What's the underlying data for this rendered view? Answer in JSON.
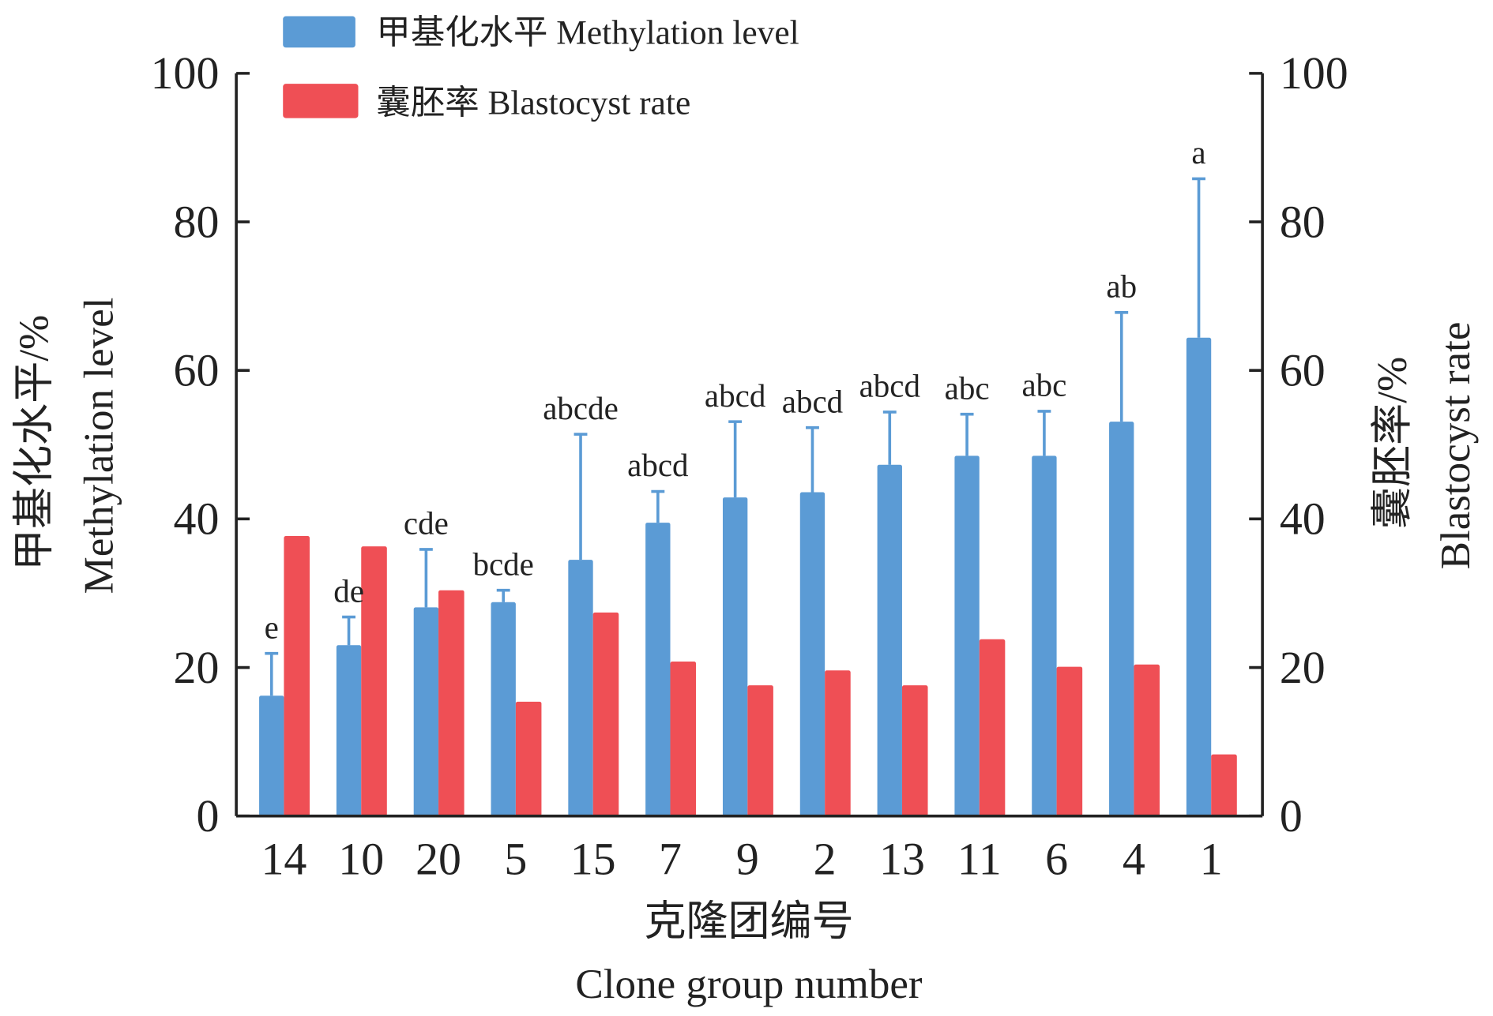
{
  "chart_data": {
    "type": "bar",
    "categories": [
      "14",
      "10",
      "20",
      "5",
      "15",
      "7",
      "9",
      "2",
      "13",
      "11",
      "6",
      "4",
      "1"
    ],
    "series": [
      {
        "name": "甲基化水平 Methylation level",
        "axis": "left",
        "color": "#5b9bd5",
        "values": [
          16.2,
          23.0,
          28.1,
          28.8,
          34.5,
          39.5,
          42.9,
          43.6,
          47.3,
          48.5,
          48.5,
          53.1,
          64.4
        ],
        "error_upper": [
          21.9,
          26.8,
          35.9,
          30.4,
          51.4,
          43.7,
          53.1,
          52.3,
          54.4,
          54.1,
          54.5,
          67.8,
          85.8
        ]
      },
      {
        "name": "囊胚率 Blastocyst rate",
        "axis": "right",
        "color": "#ef4f55",
        "values": [
          37.7,
          36.3,
          30.4,
          15.4,
          27.4,
          20.8,
          17.6,
          19.6,
          17.6,
          23.8,
          20.1,
          20.4,
          8.3
        ]
      }
    ],
    "significance_labels": [
      "e",
      "de",
      "cde",
      "bcde",
      "abcde",
      "abcd",
      "abcd",
      "abcd",
      "abcd",
      "abc",
      "abc",
      "ab",
      "a"
    ],
    "xlabel_cn": "克隆团编号",
    "xlabel": "Clone group number",
    "ylabel_left_cn": "甲基化水平/%",
    "ylabel_left": "Methylation level",
    "ylabel_right_cn": "囊胚率/%",
    "ylabel_right": "Blastocyst rate",
    "ylim": [
      0,
      100
    ],
    "y2lim": [
      0,
      100
    ],
    "yticks": [
      "0",
      "20",
      "40",
      "60",
      "80",
      "100"
    ],
    "legend_position": "top-left",
    "grid": false
  }
}
